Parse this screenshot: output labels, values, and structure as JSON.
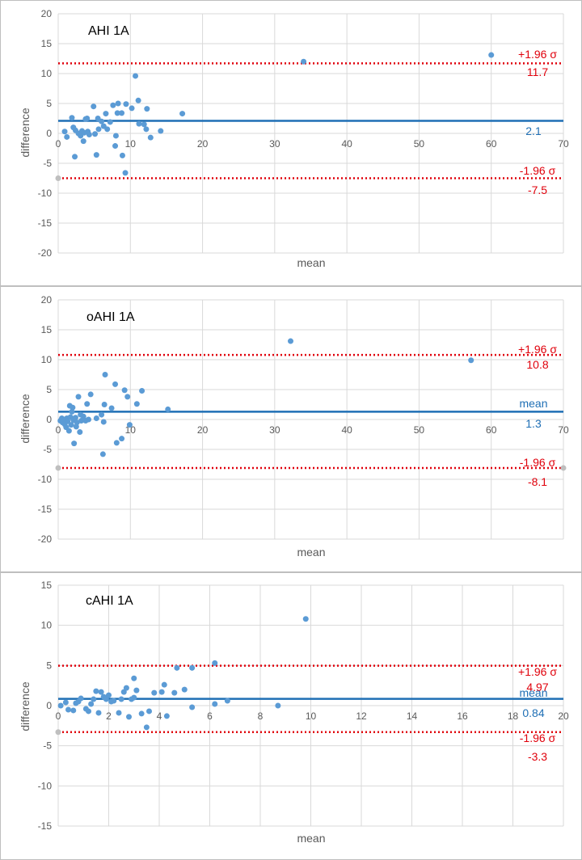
{
  "colors": {
    "point": "#5b9bd5",
    "mean_line": "#1f6fb5",
    "limit_line": "#e0000b",
    "outlier_point": "#bfbfbf",
    "grid": "#d9d9d9",
    "frame": "#bfbfbf",
    "text": "#595959"
  },
  "chart_data": [
    {
      "type": "scatter",
      "title": "AHI 1A",
      "xlabel": "mean",
      "ylabel": "difference",
      "xlim": [
        0,
        70
      ],
      "ylim": [
        -20,
        20
      ],
      "xticks": [
        0,
        10,
        20,
        30,
        40,
        50,
        60,
        70
      ],
      "yticks": [
        20,
        15,
        10,
        5,
        0,
        -5,
        -10,
        -15,
        -20
      ],
      "grid": true,
      "mean": {
        "value": 2.1,
        "label": "2.1"
      },
      "upper": {
        "value": 11.7,
        "label": "11.7",
        "tag": "+1.96 σ"
      },
      "lower": {
        "value": -7.5,
        "label": "-7.5",
        "tag": "-1.96 σ"
      },
      "points": [
        [
          0.9,
          0.3
        ],
        [
          1.2,
          -0.6
        ],
        [
          1.9,
          2.6
        ],
        [
          2.1,
          1.0
        ],
        [
          2.3,
          -3.9
        ],
        [
          2.4,
          0.5
        ],
        [
          2.8,
          0.0
        ],
        [
          3.1,
          -0.4
        ],
        [
          3.3,
          0.4
        ],
        [
          3.5,
          -1.3
        ],
        [
          3.6,
          0.1
        ],
        [
          3.8,
          2.4
        ],
        [
          4.0,
          2.5
        ],
        [
          4.1,
          0.3
        ],
        [
          4.3,
          -0.2
        ],
        [
          4.9,
          4.5
        ],
        [
          5.1,
          -0.1
        ],
        [
          5.3,
          -3.6
        ],
        [
          5.5,
          2.5
        ],
        [
          5.6,
          0.7
        ],
        [
          6.0,
          2.0
        ],
        [
          6.3,
          1.2
        ],
        [
          6.6,
          3.3
        ],
        [
          6.8,
          0.7
        ],
        [
          7.2,
          1.9
        ],
        [
          7.6,
          4.7
        ],
        [
          7.9,
          -2.1
        ],
        [
          8.0,
          -0.4
        ],
        [
          8.2,
          3.4
        ],
        [
          8.3,
          5.0
        ],
        [
          8.8,
          3.4
        ],
        [
          8.9,
          -3.7
        ],
        [
          9.3,
          -6.6
        ],
        [
          9.4,
          4.9
        ],
        [
          10.2,
          4.2
        ],
        [
          10.7,
          9.6
        ],
        [
          11.1,
          5.5
        ],
        [
          11.2,
          1.6
        ],
        [
          11.9,
          1.5
        ],
        [
          12.2,
          0.7
        ],
        [
          12.3,
          4.1
        ],
        [
          12.8,
          -0.7
        ],
        [
          14.2,
          0.4
        ],
        [
          17.2,
          3.3
        ],
        [
          34.0,
          12.0
        ],
        [
          60.0,
          13.1
        ]
      ],
      "outliers": [
        [
          0,
          -7.5
        ]
      ]
    },
    {
      "type": "scatter",
      "title": "oAHI 1A",
      "xlabel": "mean",
      "ylabel": "difference",
      "xlim": [
        0,
        70
      ],
      "ylim": [
        -20,
        20
      ],
      "xticks": [
        0,
        10,
        20,
        30,
        40,
        50,
        60,
        70
      ],
      "yticks": [
        20,
        15,
        10,
        5,
        0,
        -5,
        -10,
        -15,
        -20
      ],
      "grid": true,
      "mean": {
        "value": 1.3,
        "label": "1.3",
        "tag": "mean"
      },
      "upper": {
        "value": 10.8,
        "label": "10.8",
        "tag": "+1.96 σ"
      },
      "lower": {
        "value": -8.1,
        "label": "-8.1",
        "tag": "-1.96 σ"
      },
      "points": [
        [
          0.3,
          -0.2
        ],
        [
          0.5,
          0.2
        ],
        [
          0.6,
          -0.5
        ],
        [
          0.8,
          0.0
        ],
        [
          0.9,
          -0.8
        ],
        [
          1.1,
          -1.3
        ],
        [
          1.2,
          0.2
        ],
        [
          1.3,
          -0.3
        ],
        [
          1.5,
          -1.9
        ],
        [
          1.6,
          2.3
        ],
        [
          1.7,
          0.4
        ],
        [
          1.8,
          -0.9
        ],
        [
          1.9,
          1.3
        ],
        [
          2.0,
          2.0
        ],
        [
          2.1,
          -0.1
        ],
        [
          2.2,
          -4.0
        ],
        [
          2.4,
          0.3
        ],
        [
          2.5,
          -1.2
        ],
        [
          2.6,
          -0.5
        ],
        [
          2.8,
          3.8
        ],
        [
          3.0,
          -2.1
        ],
        [
          3.1,
          0.8
        ],
        [
          3.2,
          -0.2
        ],
        [
          3.5,
          0.5
        ],
        [
          3.8,
          -0.2
        ],
        [
          4.0,
          2.6
        ],
        [
          4.2,
          0.0
        ],
        [
          4.5,
          4.2
        ],
        [
          5.3,
          0.2
        ],
        [
          6.0,
          0.8
        ],
        [
          6.2,
          -5.8
        ],
        [
          6.3,
          -0.4
        ],
        [
          6.4,
          2.5
        ],
        [
          6.5,
          7.5
        ],
        [
          7.4,
          1.9
        ],
        [
          7.9,
          5.9
        ],
        [
          8.1,
          -3.9
        ],
        [
          8.8,
          -3.2
        ],
        [
          9.2,
          4.9
        ],
        [
          9.6,
          3.8
        ],
        [
          9.9,
          -0.9
        ],
        [
          10.9,
          2.6
        ],
        [
          11.6,
          4.8
        ],
        [
          15.2,
          1.7
        ],
        [
          32.2,
          13.1
        ],
        [
          57.2,
          9.9
        ]
      ],
      "outliers": [
        [
          0,
          -8.1
        ],
        [
          70,
          -8.1
        ]
      ]
    },
    {
      "type": "scatter",
      "title": "cAHI 1A",
      "xlabel": "mean",
      "ylabel": "difference",
      "xlim": [
        0,
        20
      ],
      "ylim": [
        -15,
        15
      ],
      "xticks": [
        0,
        2,
        4,
        6,
        8,
        10,
        12,
        14,
        16,
        18,
        20
      ],
      "yticks": [
        15,
        10,
        5,
        0,
        -5,
        -10,
        -15
      ],
      "grid": true,
      "mean": {
        "value": 0.84,
        "label": "0.84",
        "tag": "mean"
      },
      "upper": {
        "value": 4.97,
        "label": "4.97",
        "tag": "+1.96 σ"
      },
      "lower": {
        "value": -3.3,
        "label": "-3.3",
        "tag": "-1.96 σ"
      },
      "points": [
        [
          0.1,
          0.0
        ],
        [
          0.3,
          0.4
        ],
        [
          0.4,
          -0.5
        ],
        [
          0.6,
          -0.6
        ],
        [
          0.7,
          0.3
        ],
        [
          0.8,
          0.5
        ],
        [
          0.9,
          0.9
        ],
        [
          1.1,
          -0.4
        ],
        [
          1.2,
          -0.7
        ],
        [
          1.3,
          0.2
        ],
        [
          1.4,
          0.8
        ],
        [
          1.5,
          1.8
        ],
        [
          1.6,
          -0.9
        ],
        [
          1.7,
          1.7
        ],
        [
          1.8,
          1.1
        ],
        [
          1.9,
          0.8
        ],
        [
          2.0,
          1.3
        ],
        [
          2.1,
          0.5
        ],
        [
          2.2,
          0.6
        ],
        [
          2.4,
          -0.9
        ],
        [
          2.5,
          0.8
        ],
        [
          2.6,
          1.7
        ],
        [
          2.7,
          2.2
        ],
        [
          2.8,
          -1.4
        ],
        [
          2.9,
          0.8
        ],
        [
          3.0,
          1.0
        ],
        [
          3.0,
          3.4
        ],
        [
          3.1,
          1.9
        ],
        [
          3.3,
          -1.0
        ],
        [
          3.5,
          -2.7
        ],
        [
          3.6,
          -0.7
        ],
        [
          3.8,
          1.6
        ],
        [
          4.1,
          1.7
        ],
        [
          4.2,
          2.6
        ],
        [
          4.3,
          -1.3
        ],
        [
          4.6,
          1.6
        ],
        [
          4.7,
          4.7
        ],
        [
          5.0,
          2.0
        ],
        [
          5.3,
          -0.2
        ],
        [
          5.3,
          4.7
        ],
        [
          6.2,
          0.2
        ],
        [
          6.2,
          5.3
        ],
        [
          6.7,
          0.6
        ],
        [
          8.7,
          0.0
        ],
        [
          9.8,
          10.8
        ]
      ],
      "outliers": [
        [
          0,
          -3.3
        ]
      ]
    }
  ]
}
